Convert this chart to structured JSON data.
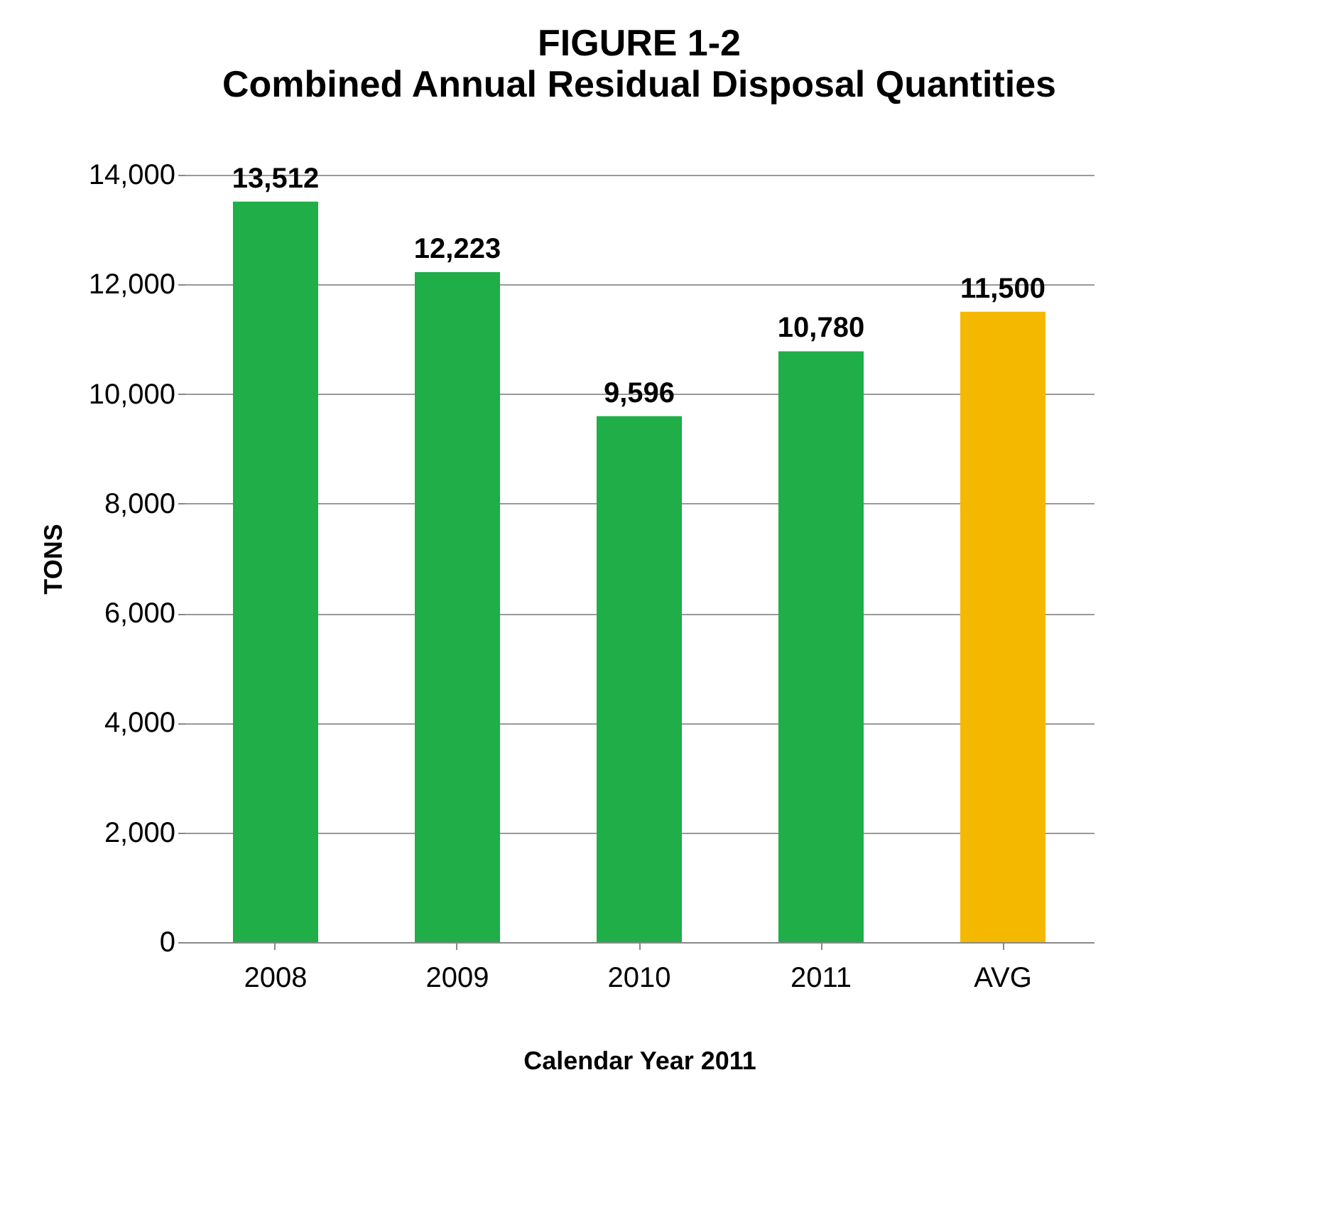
{
  "chart_data": {
    "type": "bar",
    "title": "FIGURE 1-2",
    "subtitle": "Combined Annual Residual Disposal Quantities",
    "xlabel": "Calendar Year 2011",
    "ylabel": "TONS",
    "categories": [
      "2008",
      "2009",
      "2010",
      "2011",
      "AVG"
    ],
    "values": [
      13512,
      12223,
      9596,
      10780,
      11500
    ],
    "value_labels": [
      "13,512",
      "12,223",
      "9,596",
      "10,780",
      "11,500"
    ],
    "colors": [
      "#1fae48",
      "#1fae48",
      "#1fae48",
      "#1fae48",
      "#f5b800"
    ],
    "ylim": [
      0,
      14000
    ],
    "yticks": [
      0,
      {
        "value": 2000,
        "label": "2,000"
      },
      {
        "value": 4000,
        "label": "4,000"
      },
      {
        "value": 6000,
        "label": "6,000"
      },
      {
        "value": 8000,
        "label": "8,000"
      },
      {
        "value": 10000,
        "label": "10,000"
      },
      {
        "value": 12000,
        "label": "12,000"
      },
      {
        "value": 14000,
        "label": "14,000"
      }
    ],
    "grid": "y"
  }
}
